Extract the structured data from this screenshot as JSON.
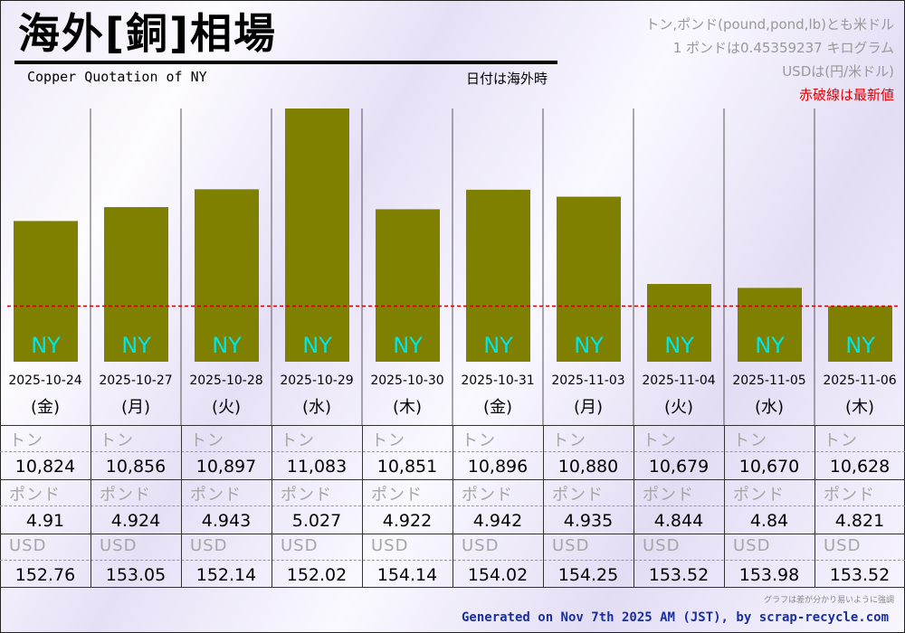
{
  "header": {
    "title": "海外[銅]相場",
    "subtitle": "Copper Quotation of NY",
    "date_note": "日付は海外時"
  },
  "notes": {
    "line1": "トン,ポンド(pound,pond,lb)とも米ドル",
    "line2": "1 ポンドは0.45359237 キログラム",
    "line3": "USDは(円/米ドル)",
    "line4": "赤破線は最新値"
  },
  "colors": {
    "bar": "#7f7f00",
    "bar_label": "#00e5e5",
    "latest_line": "#cc0000",
    "footer": "#1a2f9e"
  },
  "chart_data": {
    "type": "bar",
    "categories": [
      "2025-10-24",
      "2025-10-27",
      "2025-10-28",
      "2025-10-29",
      "2025-10-30",
      "2025-10-31",
      "2025-11-03",
      "2025-11-04",
      "2025-11-05",
      "2025-11-06"
    ],
    "weekdays": [
      "(金)",
      "(月)",
      "(火)",
      "(水)",
      "(木)",
      "(金)",
      "(月)",
      "(火)",
      "(水)",
      "(木)"
    ],
    "bar_label": "NY",
    "values": [
      10824,
      10856,
      10897,
      11083,
      10851,
      10896,
      10880,
      10679,
      10670,
      10628
    ],
    "latest_value": 10628
  },
  "table": {
    "rows": [
      {
        "label": "トン",
        "values": [
          "10,824",
          "10,856",
          "10,897",
          "11,083",
          "10,851",
          "10,896",
          "10,880",
          "10,679",
          "10,670",
          "10,628"
        ]
      },
      {
        "label": "ポンド",
        "values": [
          "4.91",
          "4.924",
          "4.943",
          "5.027",
          "4.922",
          "4.942",
          "4.935",
          "4.844",
          "4.84",
          "4.821"
        ]
      },
      {
        "label": "USD",
        "values": [
          "152.76",
          "153.05",
          "152.14",
          "152.02",
          "154.14",
          "154.02",
          "154.25",
          "153.52",
          "153.98",
          "153.52"
        ]
      }
    ]
  },
  "footer": {
    "note": "グラフは差が分かり易いように強調",
    "credit": "Generated on Nov 7th 2025 AM (JST), by scrap-recycle.com"
  }
}
